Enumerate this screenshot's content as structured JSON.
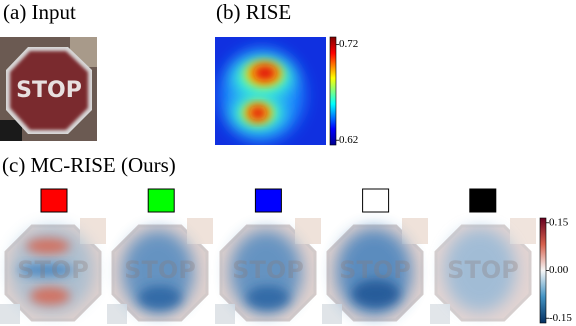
{
  "panels": [
    {
      "label": "(a) Input",
      "sign_text": "STOP"
    },
    {
      "label": "(b) RISE",
      "colorbar": {
        "lim": [
          0.615,
          0.728
        ],
        "ticks": [
          0.62,
          0.72
        ]
      }
    },
    {
      "label": "(c) MC-RISE (Ours)",
      "swatches": [
        "#ff0000",
        "#00ff00",
        "#0000ff",
        "#ffffff",
        "#000000"
      ],
      "colorbar": {
        "lim": [
          -0.165,
          0.165
        ],
        "ticks": [
          -0.15,
          {
            "value": 0,
            "label": "0.00"
          },
          0.15
        ]
      }
    }
  ]
}
